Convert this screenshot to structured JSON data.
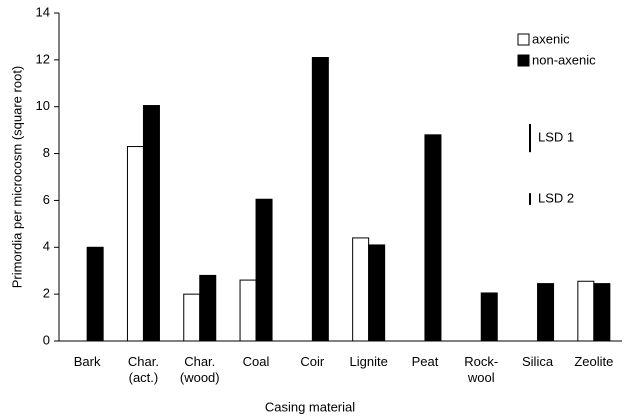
{
  "chart_data": {
    "type": "bar",
    "x_label": "Casing material",
    "y_label": "Primordia per microcosm (square root)",
    "categories": [
      "Bark",
      "Char.\n(act.)",
      "Char.\n(wood)",
      "Coal",
      "Coir",
      "Lignite",
      "Peat",
      "Rock-\nwool",
      "Silica",
      "Zeolite"
    ],
    "series": [
      {
        "name": "axenic",
        "color": "#ffffff",
        "values": [
          null,
          8.3,
          2.0,
          2.6,
          null,
          4.4,
          null,
          null,
          null,
          2.55
        ]
      },
      {
        "name": "non-axenic",
        "color": "#000000",
        "values": [
          4.0,
          10.05,
          2.8,
          6.05,
          12.1,
          4.1,
          8.8,
          2.05,
          2.45,
          2.45
        ]
      }
    ],
    "lsd": [
      {
        "label": "LSD 1",
        "center": 8.66,
        "value": 1.2
      },
      {
        "label": "LSD 2",
        "center": 6.06,
        "value": 0.5
      }
    ],
    "ylim": [
      0,
      14
    ],
    "yticks": [
      0,
      2,
      4,
      6,
      8,
      10,
      12,
      14
    ],
    "legend": "top-right"
  }
}
